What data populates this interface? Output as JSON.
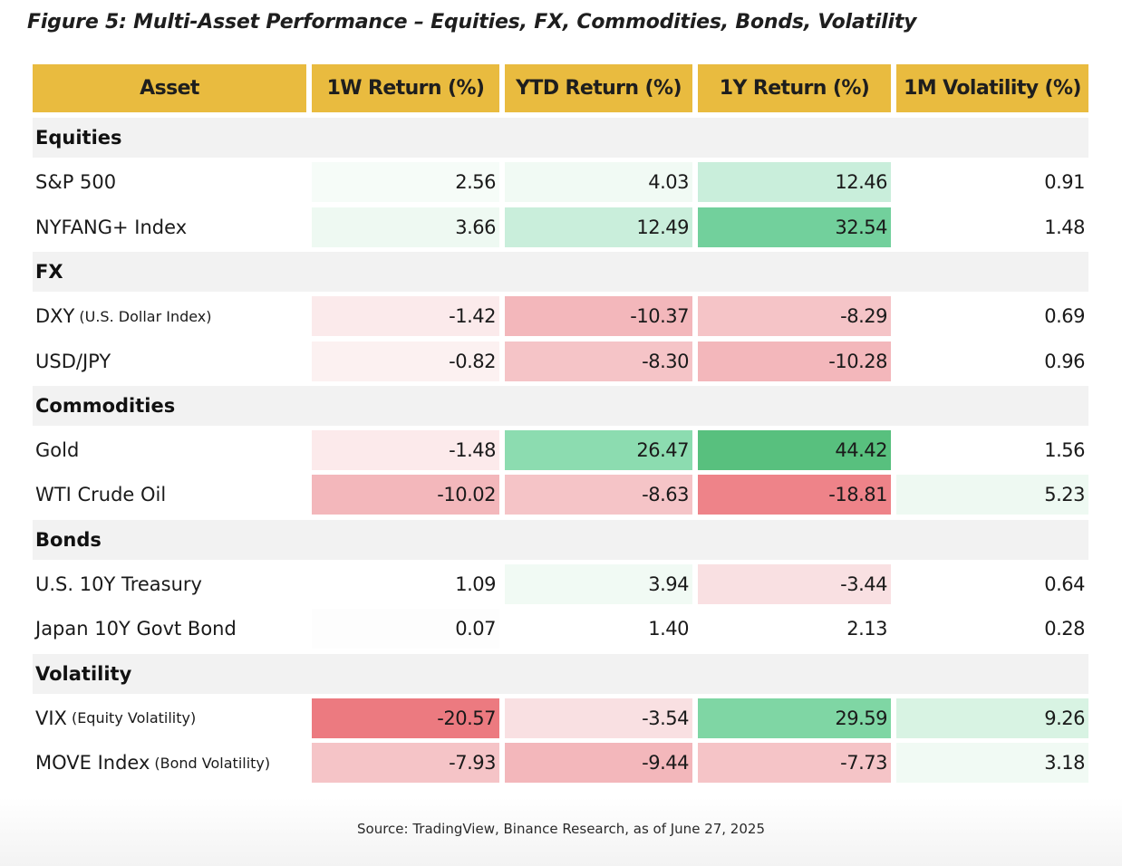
{
  "title": "Figure 5: Multi-Asset Performance – Equities, FX, Commodities, Bonds, Volatility",
  "headers": [
    "Asset",
    "1W Return (%)",
    "YTD Return (%)",
    "1Y Return (%)",
    "1M Volatility (%)"
  ],
  "sections": [
    {
      "label": "Equities",
      "rows": [
        {
          "asset": "S&P 500",
          "sub": "",
          "values": [
            "2.56",
            "4.03",
            "12.46",
            "0.91"
          ],
          "colors": [
            "#f6fcf8",
            "#f1faf4",
            "#c9eedb",
            "#ffffff"
          ]
        },
        {
          "asset": "NYFANG+ Index",
          "sub": "",
          "values": [
            "3.66",
            "12.49",
            "32.54",
            "1.48"
          ],
          "colors": [
            "#eef9f2",
            "#c9eedb",
            "#72d09c",
            "#ffffff"
          ]
        }
      ]
    },
    {
      "label": "FX",
      "rows": [
        {
          "asset": "DXY",
          "sub": "(U.S. Dollar Index)",
          "values": [
            "-1.42",
            "-10.37",
            "-8.29",
            "0.69"
          ],
          "colors": [
            "#fbeaeb",
            "#f3b7bb",
            "#f5c4c7",
            "#ffffff"
          ]
        },
        {
          "asset": "USD/JPY",
          "sub": "",
          "values": [
            "-0.82",
            "-8.30",
            "-10.28",
            "0.96"
          ],
          "colors": [
            "#fcf1f1",
            "#f5c4c7",
            "#f3b7bb",
            "#ffffff"
          ]
        }
      ]
    },
    {
      "label": "Commodities",
      "rows": [
        {
          "asset": "Gold",
          "sub": "",
          "values": [
            "-1.48",
            "26.47",
            "44.42",
            "1.56"
          ],
          "colors": [
            "#fceaeb",
            "#8cdcb0",
            "#58c07e",
            "#ffffff"
          ]
        },
        {
          "asset": "WTI Crude Oil",
          "sub": "",
          "values": [
            "-10.02",
            "-8.63",
            "-18.81",
            "5.23"
          ],
          "colors": [
            "#f3b7bb",
            "#f5c4c7",
            "#ee8389",
            "#eef9f2"
          ]
        }
      ]
    },
    {
      "label": "Bonds",
      "rows": [
        {
          "asset": "U.S. 10Y Treasury",
          "sub": "",
          "values": [
            "1.09",
            "3.94",
            "-3.44",
            "0.64"
          ],
          "colors": [
            "#ffffff",
            "#f1faf4",
            "#f9e0e2",
            "#ffffff"
          ]
        },
        {
          "asset": "Japan 10Y Govt Bond",
          "sub": "",
          "values": [
            "0.07",
            "1.40",
            "2.13",
            "0.28"
          ],
          "colors": [
            "#fdfdfd",
            "#ffffff",
            "#ffffff",
            "#ffffff"
          ]
        }
      ]
    },
    {
      "label": "Volatility",
      "rows": [
        {
          "asset": "VIX",
          "sub": "(Equity Volatility)",
          "values": [
            "-20.57",
            "-3.54",
            "29.59",
            "9.26"
          ],
          "colors": [
            "#ec7a80",
            "#f9e0e2",
            "#7fd6a4",
            "#d8f3e3"
          ]
        },
        {
          "asset": "MOVE Index",
          "sub": "(Bond Volatility)",
          "values": [
            "-7.93",
            "-9.44",
            "-7.73",
            "3.18"
          ],
          "colors": [
            "#f5c4c7",
            "#f3b7bb",
            "#f5c4c7",
            "#f1faf4"
          ]
        }
      ]
    }
  ],
  "source": "Source: TradingView, Binance Research, as of June 27, 2025"
}
